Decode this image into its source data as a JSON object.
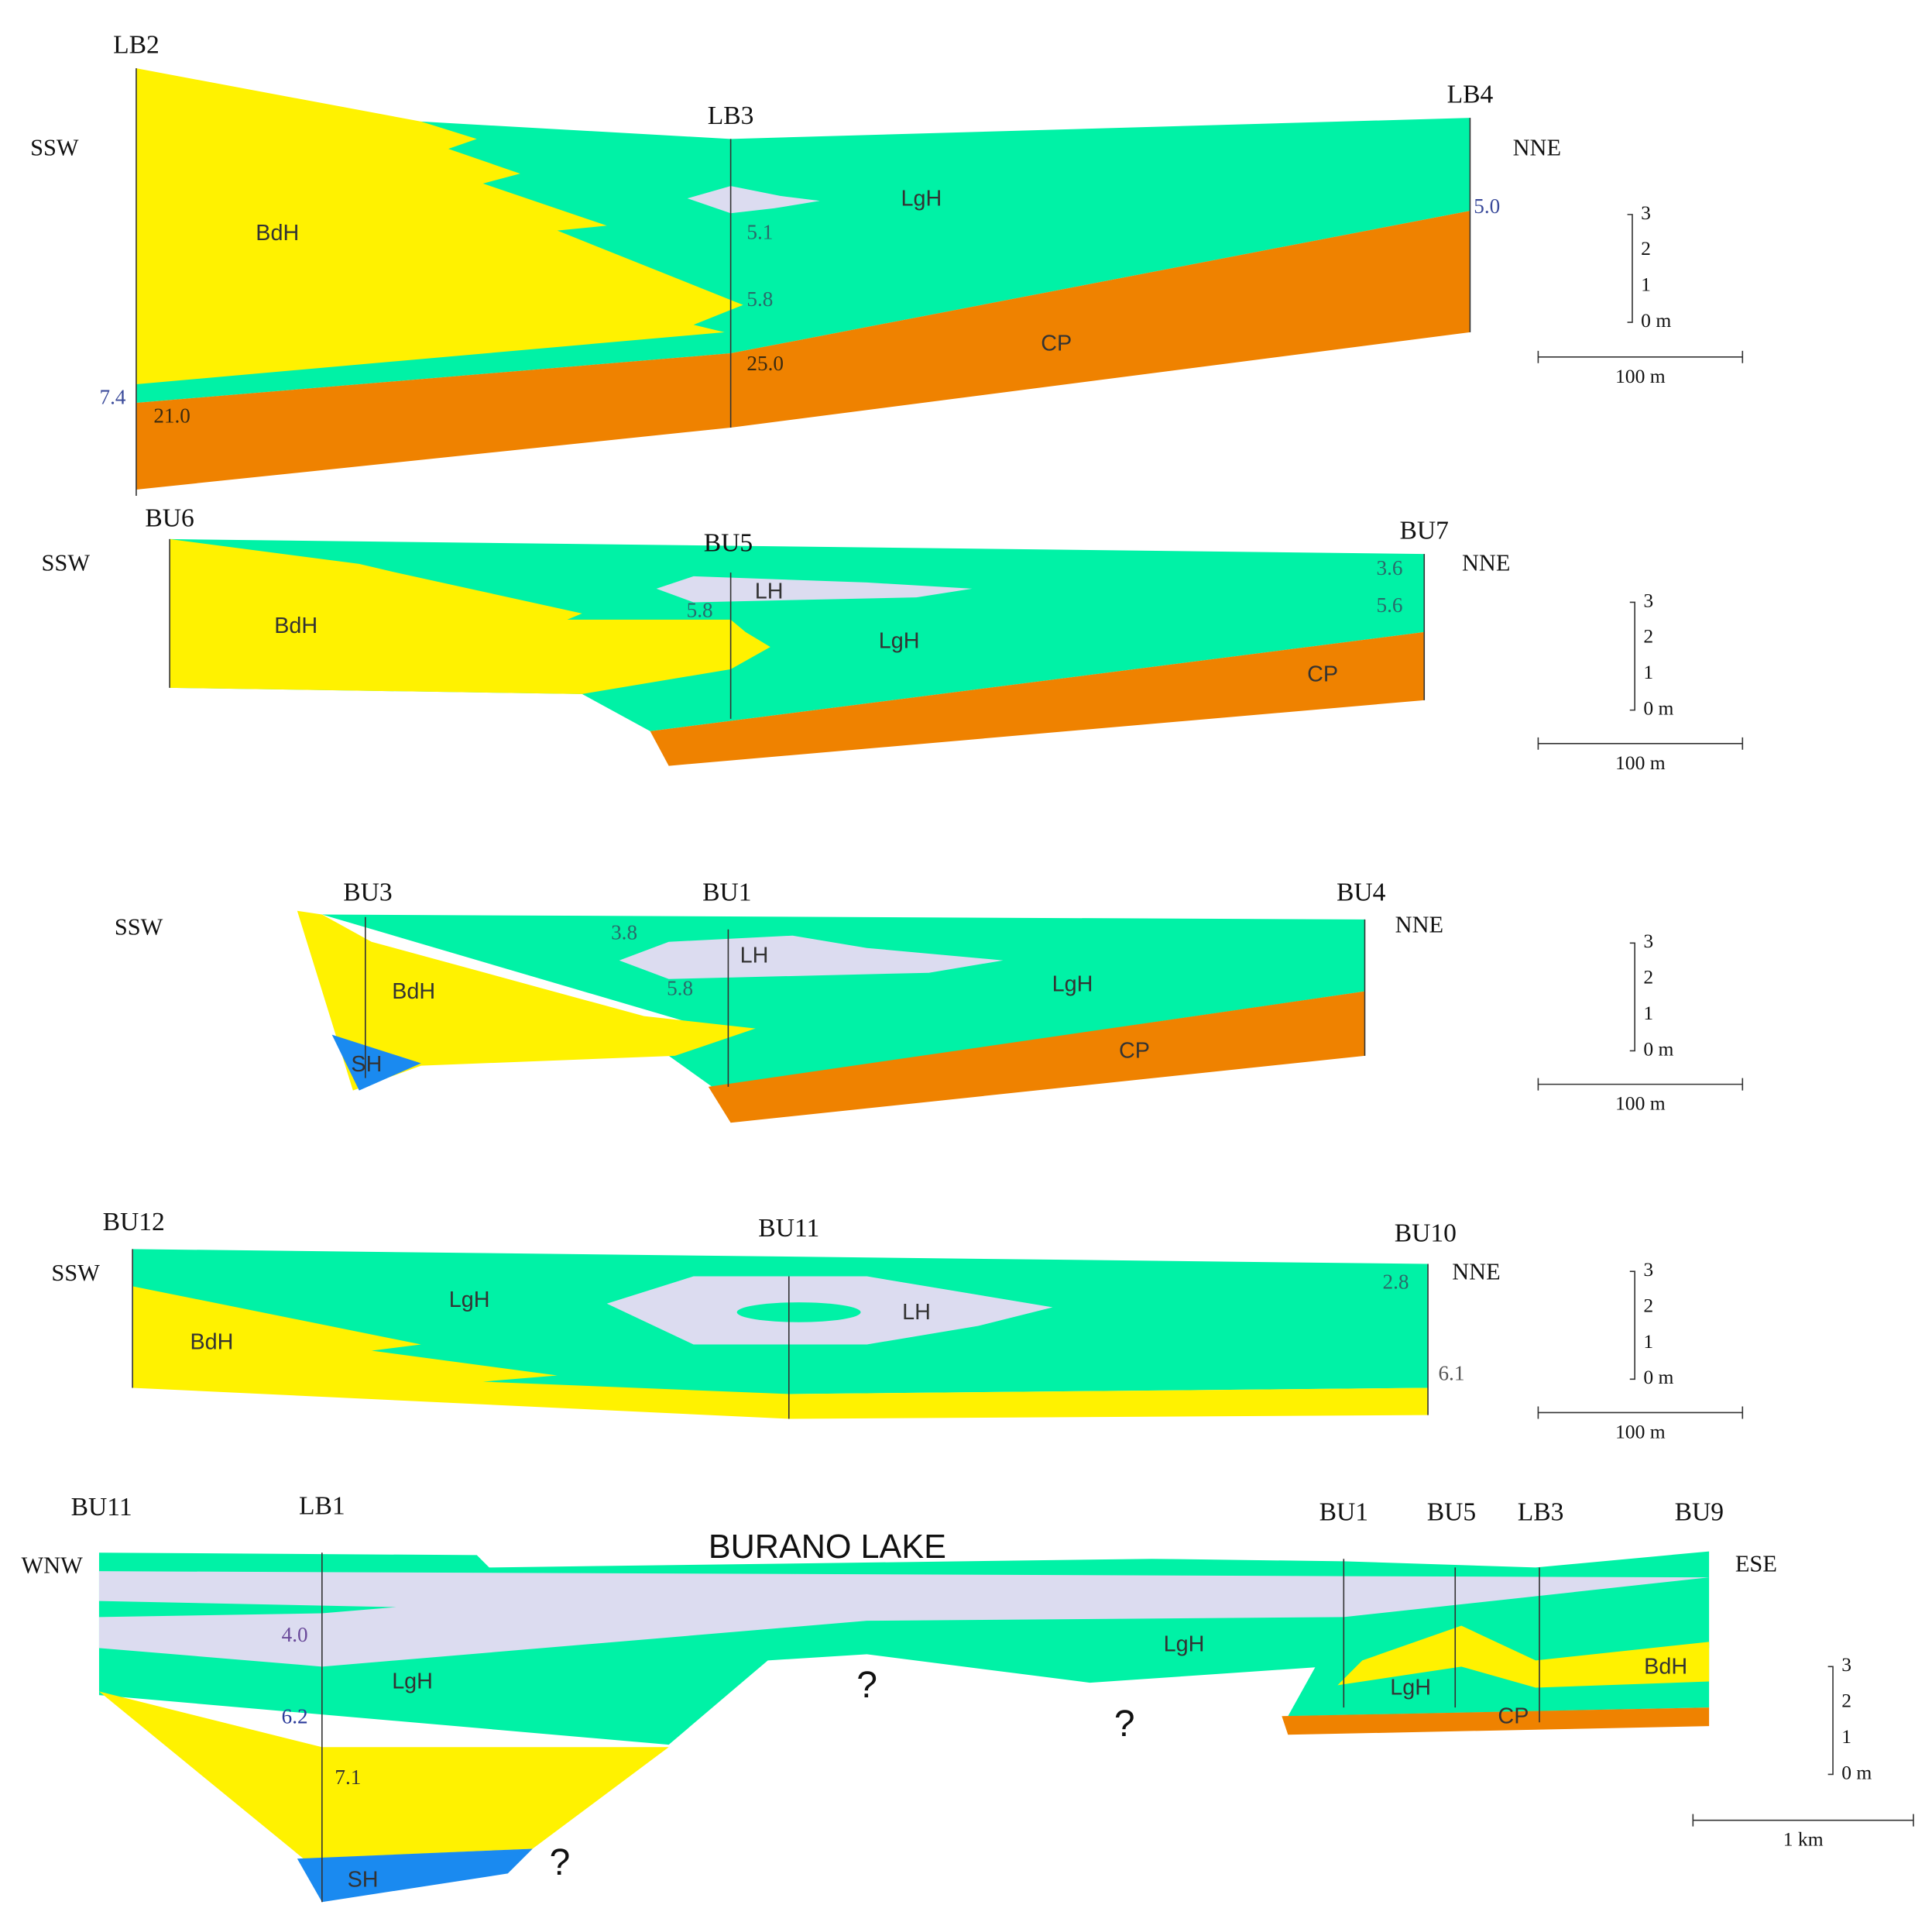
{
  "sections": [
    {
      "boreholes": [
        "LB2",
        "LB3",
        "LB4"
      ],
      "orientation": [
        "SSW",
        "NNE"
      ],
      "units": [
        "BdH",
        "LgH",
        "CP"
      ],
      "depths": [
        "7.4",
        "21.0",
        "5.1",
        "5.8",
        "25.0",
        "5.0"
      ],
      "scale": {
        "vertical": [
          "3",
          "2",
          "1",
          "0 m"
        ],
        "horizontal": "100 m"
      }
    },
    {
      "boreholes": [
        "BU6",
        "BU5",
        "BU7"
      ],
      "orientation": [
        "SSW",
        "NNE"
      ],
      "units": [
        "BdH",
        "LH",
        "LgH",
        "CP"
      ],
      "depths": [
        "5.8",
        "3.6",
        "5.6"
      ],
      "scale": {
        "vertical": [
          "3",
          "2",
          "1",
          "0 m"
        ],
        "horizontal": "100 m"
      }
    },
    {
      "boreholes": [
        "BU3",
        "BU1",
        "BU4"
      ],
      "orientation": [
        "SSW",
        "NNE"
      ],
      "units": [
        "BdH",
        "SH",
        "LH",
        "LgH",
        "CP"
      ],
      "depths": [
        "3.8",
        "5.8"
      ],
      "scale": {
        "vertical": [
          "3",
          "2",
          "1",
          "0 m"
        ],
        "horizontal": "100 m"
      }
    },
    {
      "boreholes": [
        "BU12",
        "BU11",
        "BU10"
      ],
      "orientation": [
        "SSW",
        "NNE"
      ],
      "units": [
        "LgH",
        "BdH",
        "LH"
      ],
      "depths": [
        "2.8",
        "6.1"
      ],
      "scale": {
        "vertical": [
          "3",
          "2",
          "1",
          "0 m"
        ],
        "horizontal": "100 m"
      }
    },
    {
      "title": "BURANO LAKE",
      "boreholes": [
        "BU11",
        "LB1",
        "BU1",
        "BU5",
        "LB3",
        "BU9"
      ],
      "orientation": [
        "WNW",
        "ESE"
      ],
      "units": [
        "LgH",
        "LgH",
        "LgH",
        "BdH",
        "CP",
        "SH"
      ],
      "depths": [
        "4.0",
        "6.2",
        "7.1"
      ],
      "uncertain": [
        "?",
        "?",
        "?"
      ],
      "scale": {
        "vertical": [
          "3",
          "2",
          "1",
          "0 m"
        ],
        "horizontal": "1 km"
      }
    }
  ]
}
